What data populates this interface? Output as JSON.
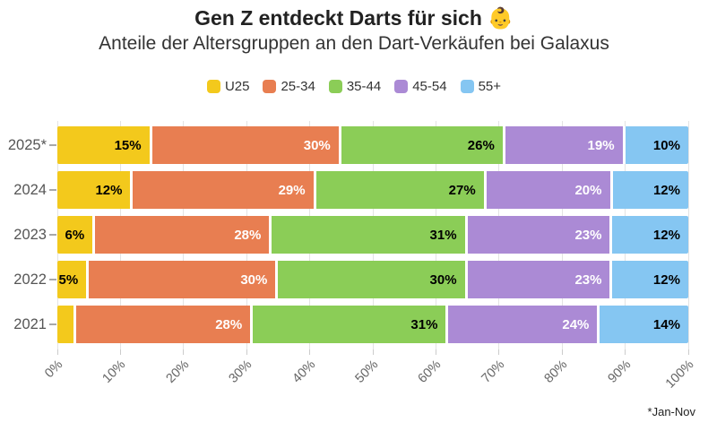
{
  "title": "Gen Z entdeckt Darts für sich 👶",
  "subtitle": "Anteile der Altersgruppen an den Dart-Verkäufen bei Galaxus",
  "footnote": "*Jan-Nov",
  "chart_data": {
    "type": "bar",
    "orientation": "horizontal",
    "stacked": true,
    "title": "Gen Z entdeckt Darts für sich 👶",
    "subtitle": "Anteile der Altersgruppen an den Dart-Verkäufen bei Galaxus",
    "categories": [
      "2025*",
      "2024",
      "2023",
      "2022",
      "2021"
    ],
    "series": [
      {
        "name": "U25",
        "color": "#F3C91C",
        "label_color": "#000000",
        "values": [
          15,
          12,
          6,
          5,
          3
        ]
      },
      {
        "name": "25-34",
        "color": "#E87E51",
        "label_color": "#ffffff",
        "values": [
          30,
          29,
          28,
          30,
          28
        ]
      },
      {
        "name": "35-44",
        "color": "#8BCD57",
        "label_color": "#000000",
        "values": [
          26,
          27,
          31,
          30,
          31
        ]
      },
      {
        "name": "45-54",
        "color": "#AB8AD5",
        "label_color": "#ffffff",
        "values": [
          19,
          20,
          23,
          23,
          24
        ]
      },
      {
        "name": "55+",
        "color": "#85C6F2",
        "label_color": "#000000",
        "values": [
          10,
          12,
          12,
          12,
          14
        ]
      }
    ],
    "label_format": "{v}%",
    "min_label_value": 5,
    "x_ticks": [
      "0%",
      "10%",
      "20%",
      "30%",
      "40%",
      "50%",
      "60%",
      "70%",
      "80%",
      "90%",
      "100%"
    ],
    "xlim": [
      0,
      100
    ],
    "legend_position": "top",
    "grid": "vertical",
    "grid_color": "#e3e3e3"
  }
}
